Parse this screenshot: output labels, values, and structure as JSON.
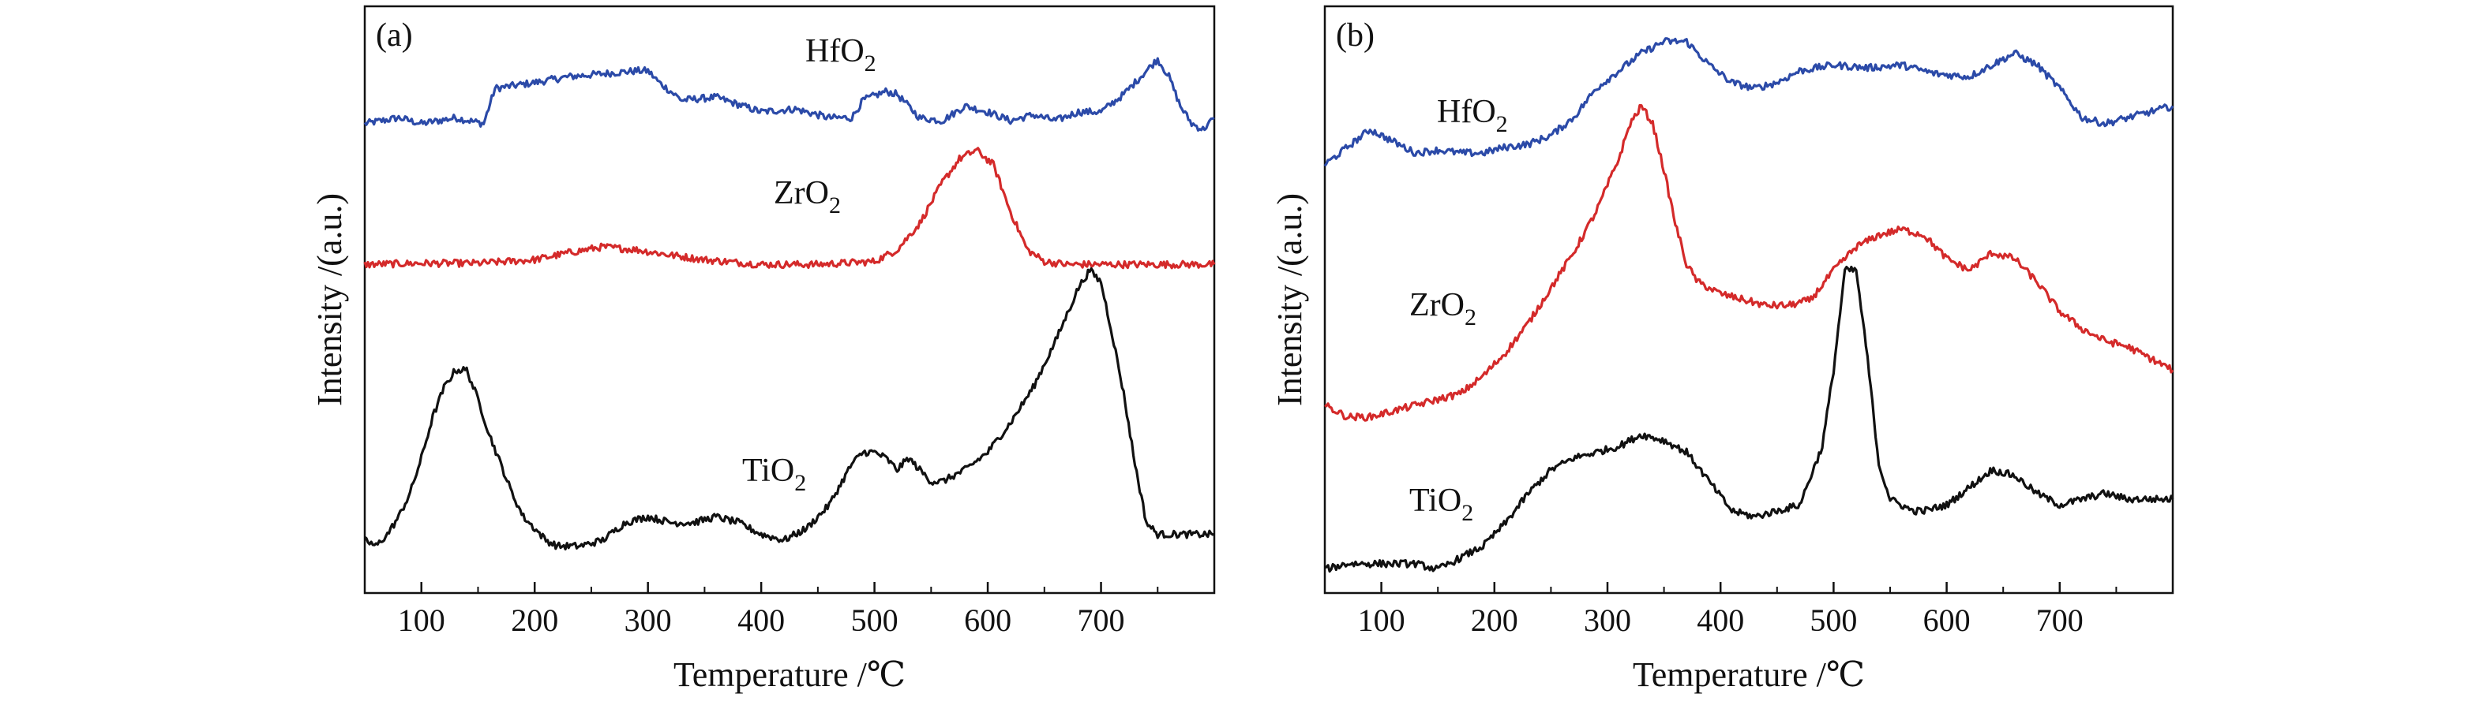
{
  "chart_data": [
    {
      "type": "line",
      "panel_label": "(a)",
      "xlabel": "Temperature /℃",
      "ylabel": "Intensity /(a.u.)",
      "xlim": [
        50,
        800
      ],
      "xticks": [
        100,
        200,
        300,
        400,
        500,
        600,
        700
      ],
      "ylim": [
        0,
        100
      ],
      "y_ticks_shown": false,
      "grid": false,
      "series": [
        {
          "name": "HfO2",
          "label_base": "HfO",
          "label_sub": "2",
          "color": "#2b4aa8",
          "x": [
            50,
            80,
            100,
            130,
            155,
            165,
            200,
            230,
            260,
            290,
            300,
            310,
            330,
            360,
            400,
            430,
            460,
            480,
            490,
            510,
            520,
            540,
            560,
            580,
            600,
            620,
            640,
            660,
            680,
            700,
            720,
            740,
            750,
            760,
            770,
            780,
            790,
            800
          ],
          "y": [
            80,
            81,
            80,
            81,
            80,
            86,
            87,
            88,
            88.5,
            89,
            89,
            87,
            84,
            84.5,
            82,
            82.5,
            81,
            81,
            84,
            85.5,
            85,
            81,
            80.5,
            83,
            82,
            80.5,
            81.5,
            80.5,
            82,
            82,
            85,
            89,
            91,
            88,
            83,
            80,
            79,
            81
          ]
        },
        {
          "name": "ZrO2",
          "label_base": "ZrO",
          "label_sub": "2",
          "color": "#d42a2a",
          "x": [
            50,
            100,
            150,
            200,
            230,
            260,
            290,
            320,
            350,
            400,
            450,
            500,
            520,
            540,
            560,
            575,
            590,
            605,
            620,
            635,
            650,
            670,
            700,
            750,
            800
          ],
          "y": [
            56,
            56.2,
            56.2,
            56.8,
            58,
            59,
            58.5,
            57.6,
            56.8,
            56,
            56,
            56.5,
            58.5,
            63,
            70,
            74,
            75.5,
            73,
            65,
            58.5,
            56.5,
            56,
            56,
            56,
            56
          ]
        },
        {
          "name": "TiO2",
          "label_base": "TiO",
          "label_sub": "2",
          "color": "#111111",
          "x": [
            50,
            60,
            70,
            80,
            90,
            100,
            110,
            120,
            130,
            140,
            150,
            160,
            170,
            180,
            190,
            200,
            210,
            220,
            240,
            260,
            280,
            300,
            320,
            340,
            360,
            380,
            400,
            420,
            440,
            460,
            480,
            490,
            500,
            510,
            520,
            530,
            540,
            550,
            560,
            580,
            600,
            620,
            640,
            660,
            680,
            690,
            700,
            710,
            720,
            730,
            740,
            750,
            760,
            780,
            800
          ],
          "y": [
            9,
            8,
            10,
            13,
            17,
            23,
            30,
            35,
            38,
            38,
            33,
            27,
            22,
            17,
            13,
            11,
            9,
            8,
            8,
            9,
            12,
            13,
            12,
            12,
            13,
            12,
            10,
            9,
            11,
            15,
            22,
            24,
            24,
            23,
            21,
            23,
            21,
            19,
            19,
            21,
            24,
            29,
            35,
            43,
            52,
            55,
            53,
            44,
            34,
            22,
            12,
            10,
            10,
            10,
            10
          ]
        }
      ],
      "series_label_positions": "HfO2 near 520 ℃ above curve; ZrO2 near 450 ℃ above curve; TiO2 near 420 ℃ above curve"
    },
    {
      "type": "line",
      "panel_label": "(b)",
      "xlabel": "Temperature /℃",
      "ylabel": "Intensity /(a.u.)",
      "xlim": [
        50,
        800
      ],
      "xticks": [
        100,
        200,
        300,
        400,
        500,
        600,
        700
      ],
      "ylim": [
        0,
        100
      ],
      "y_ticks_shown": false,
      "grid": false,
      "series": [
        {
          "name": "HfO2",
          "label_base": "HfO",
          "label_sub": "2",
          "color": "#2b4aa8",
          "x": [
            50,
            70,
            90,
            110,
            130,
            150,
            170,
            190,
            210,
            230,
            250,
            270,
            290,
            310,
            330,
            350,
            370,
            390,
            410,
            430,
            450,
            470,
            500,
            530,
            560,
            590,
            620,
            640,
            660,
            680,
            700,
            720,
            740,
            760,
            780,
            800
          ],
          "y": [
            73,
            76,
            79,
            77,
            75,
            75.5,
            75,
            75,
            76,
            76.5,
            78,
            81,
            86,
            89,
            92,
            94,
            94,
            90,
            87,
            86,
            87,
            89,
            90,
            89.5,
            90,
            88.5,
            88,
            90,
            92,
            90,
            86,
            81,
            80,
            81,
            82,
            83
          ]
        },
        {
          "name": "ZrO2",
          "label_base": "ZrO",
          "label_sub": "2",
          "color": "#d42a2a",
          "x": [
            50,
            70,
            90,
            110,
            130,
            150,
            170,
            190,
            210,
            230,
            250,
            270,
            290,
            310,
            320,
            330,
            340,
            350,
            360,
            370,
            380,
            390,
            400,
            420,
            440,
            460,
            480,
            500,
            520,
            540,
            560,
            580,
            600,
            620,
            640,
            660,
            680,
            700,
            720,
            740,
            760,
            780,
            800
          ],
          "y": [
            32,
            30,
            30,
            31,
            32,
            33,
            34,
            37,
            41,
            46,
            52,
            58,
            65,
            74,
            80,
            83,
            80,
            72,
            63,
            56,
            53,
            52,
            51,
            50,
            49,
            49,
            50,
            55,
            59,
            61,
            62,
            61,
            57,
            55,
            58,
            57,
            53,
            48,
            45,
            43,
            42,
            40,
            38
          ]
        },
        {
          "name": "TiO2",
          "label_base": "TiO",
          "label_sub": "2",
          "color": "#111111",
          "x": [
            50,
            70,
            90,
            110,
            130,
            150,
            170,
            190,
            210,
            230,
            250,
            270,
            290,
            310,
            330,
            350,
            370,
            390,
            410,
            430,
            450,
            470,
            490,
            500,
            510,
            520,
            530,
            540,
            550,
            560,
            570,
            580,
            600,
            620,
            640,
            660,
            680,
            700,
            720,
            740,
            760,
            780,
            800
          ],
          "y": [
            4,
            5,
            5,
            5,
            5,
            4,
            6,
            8,
            12,
            17,
            21,
            23,
            24,
            25,
            27,
            26,
            24,
            19,
            14,
            13,
            14,
            15,
            25,
            38,
            55,
            55,
            40,
            22,
            16,
            15,
            14,
            14,
            15,
            18,
            21,
            20,
            17,
            15,
            16,
            17,
            16,
            16,
            16
          ]
        }
      ],
      "series_label_positions": "HfO2 near 140 ℃ above curve; ZrO2 near 150 ℃ above curve; TiO2 near 140 ℃ above curve"
    }
  ]
}
